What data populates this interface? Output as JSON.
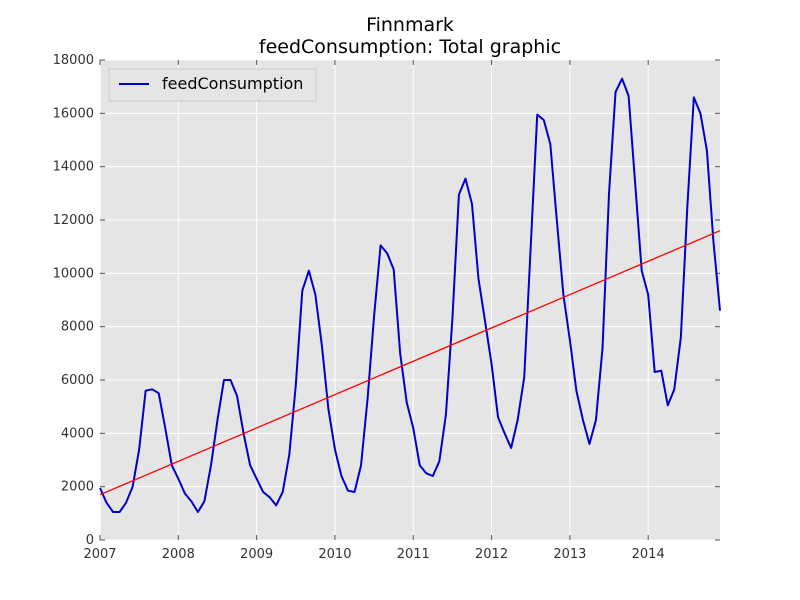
{
  "chart_data": {
    "type": "line",
    "title": "Finnmark",
    "subtitle": "feedConsumption: Total graphic",
    "xlabel": "",
    "ylabel": "",
    "xlim": [
      2007.0,
      2014.917
    ],
    "ylim": [
      0,
      18000
    ],
    "x_ticks": [
      "2007",
      "2008",
      "2009",
      "2010",
      "2011",
      "2012",
      "2013",
      "2014"
    ],
    "y_ticks": [
      "0",
      "2000",
      "4000",
      "6000",
      "8000",
      "10000",
      "12000",
      "14000",
      "16000",
      "18000"
    ],
    "grid": true,
    "legend_position": "top-left",
    "background_color": "#e5e5e5",
    "series": [
      {
        "name": "feedConsumption",
        "color": "#0000cc",
        "x": [
          2007.0,
          2007.083,
          2007.167,
          2007.25,
          2007.333,
          2007.417,
          2007.5,
          2007.583,
          2007.667,
          2007.75,
          2007.833,
          2007.917,
          2008.0,
          2008.083,
          2008.167,
          2008.25,
          2008.333,
          2008.417,
          2008.5,
          2008.583,
          2008.667,
          2008.75,
          2008.833,
          2008.917,
          2009.0,
          2009.083,
          2009.167,
          2009.25,
          2009.333,
          2009.417,
          2009.5,
          2009.583,
          2009.667,
          2009.75,
          2009.833,
          2009.917,
          2010.0,
          2010.083,
          2010.167,
          2010.25,
          2010.333,
          2010.417,
          2010.5,
          2010.583,
          2010.667,
          2010.75,
          2010.833,
          2010.917,
          2011.0,
          2011.083,
          2011.167,
          2011.25,
          2011.333,
          2011.417,
          2011.5,
          2011.583,
          2011.667,
          2011.75,
          2011.833,
          2011.917,
          2012.0,
          2012.083,
          2012.167,
          2012.25,
          2012.333,
          2012.417,
          2012.5,
          2012.583,
          2012.667,
          2012.75,
          2012.833,
          2012.917,
          2013.0,
          2013.083,
          2013.167,
          2013.25,
          2013.333,
          2013.417,
          2013.5,
          2013.583,
          2013.667,
          2013.75,
          2013.833,
          2013.917,
          2014.0,
          2014.083,
          2014.167,
          2014.25,
          2014.333,
          2014.417,
          2014.5,
          2014.583,
          2014.667,
          2014.75,
          2014.833,
          2014.917
        ],
        "values": [
          1950,
          1400,
          1050,
          1050,
          1400,
          2000,
          3400,
          5600,
          5650,
          5500,
          4200,
          2800,
          2300,
          1750,
          1450,
          1050,
          1450,
          2800,
          4500,
          6000,
          6000,
          5400,
          4000,
          2800,
          2300,
          1800,
          1600,
          1300,
          1800,
          3200,
          5800,
          9350,
          10100,
          9200,
          7300,
          4900,
          3400,
          2400,
          1850,
          1800,
          2800,
          5300,
          8400,
          11050,
          10750,
          10150,
          7000,
          5150,
          4200,
          2800,
          2500,
          2400,
          2950,
          4700,
          8300,
          12950,
          13550,
          12600,
          9800,
          8200,
          6600,
          4600,
          4000,
          3450,
          4500,
          6100,
          11000,
          15950,
          15750,
          14850,
          12000,
          9200,
          7500,
          5600,
          4500,
          3600,
          4500,
          7200,
          13000,
          16800,
          17300,
          16650,
          13400,
          10100,
          9200,
          6300,
          6350,
          5050,
          5650,
          7600,
          12500,
          16600,
          16000,
          14600,
          11200,
          8600
        ]
      },
      {
        "name": "",
        "color": "#ff0000",
        "x": [
          2007.0,
          2014.917
        ],
        "values": [
          1700,
          11600
        ]
      }
    ]
  }
}
